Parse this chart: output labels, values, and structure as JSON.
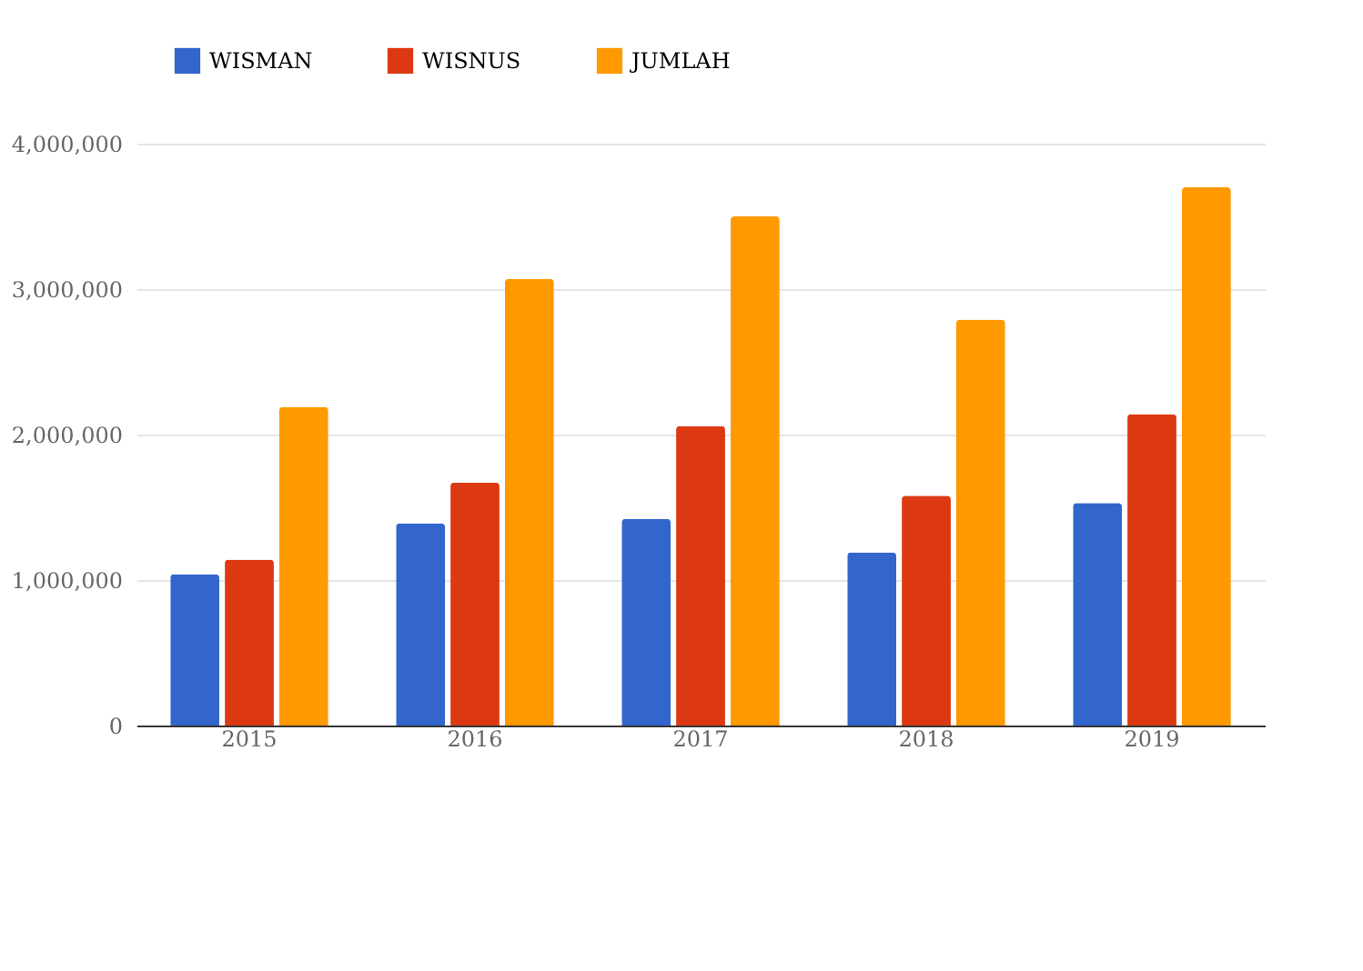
{
  "chart_data": {
    "type": "bar",
    "categories": [
      "2015",
      "2016",
      "2017",
      "2018",
      "2019"
    ],
    "series": [
      {
        "name": "WISMAN",
        "color": "#3366cc",
        "values": [
          1040000,
          1390000,
          1420000,
          1190000,
          1530000
        ]
      },
      {
        "name": "WISNUS",
        "color": "#dc3912",
        "values": [
          1140000,
          1670000,
          2060000,
          1580000,
          2140000
        ]
      },
      {
        "name": "JUMLAH",
        "color": "#ff9900",
        "values": [
          2190000,
          3070000,
          3500000,
          2790000,
          3700000
        ]
      }
    ],
    "ylim": [
      0,
      4000000
    ],
    "yticks": [
      0,
      {
        "value": 1000000,
        "label": "1,000,000"
      },
      {
        "value": 2000000,
        "label": "2,000,000"
      },
      {
        "value": 3000000,
        "label": "3,000,000"
      },
      {
        "value": 4000000,
        "label": "4,000,000"
      }
    ],
    "grid": "y",
    "legend": "top"
  }
}
